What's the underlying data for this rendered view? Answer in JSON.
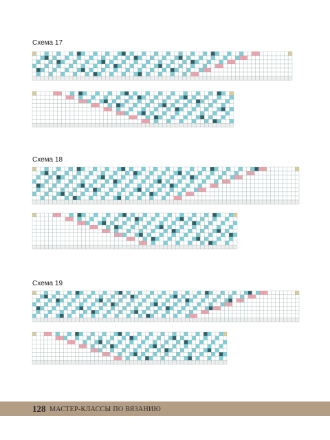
{
  "schemes": [
    {
      "title": "Схема 17"
    },
    {
      "title": "Схема 18"
    },
    {
      "title": "Схема 19"
    }
  ],
  "footer": {
    "page_number": "128",
    "title": "МАСТЕР-КЛАССЫ ПО ВЯЗАНИЮ"
  }
}
